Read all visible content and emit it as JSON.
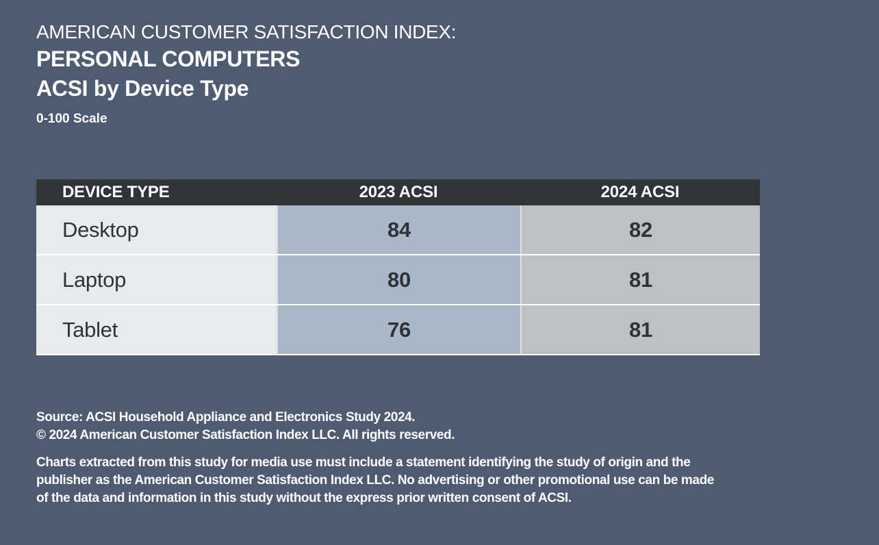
{
  "colors": {
    "bg": "#4e5b70",
    "header_bg": "#313335",
    "col_device_bg": "#e8eaec",
    "col_2023_bg": "#aab7c8",
    "col_2024_bg": "#bec1c3",
    "cell_text": "#303335",
    "title_text": "#ffffff"
  },
  "header": {
    "kicker": "AMERICAN CUSTOMER SATISFACTION INDEX:",
    "title": "PERSONAL COMPUTERS",
    "subtitle": "ACSI by Device Type",
    "scale_note": "0-100 Scale"
  },
  "chart_data": {
    "type": "table",
    "title": "American Customer Satisfaction Index: Personal Computers — ACSI by Device Type",
    "scale": "0-100 Scale",
    "columns": [
      "DEVICE TYPE",
      "2023 ACSI",
      "2024 ACSI"
    ],
    "rows": [
      {
        "device": "Desktop",
        "acsi_2023": 84,
        "acsi_2024": 82
      },
      {
        "device": "Laptop",
        "acsi_2023": 80,
        "acsi_2024": 81
      },
      {
        "device": "Tablet",
        "acsi_2023": 76,
        "acsi_2024": 81
      }
    ]
  },
  "footer": {
    "source_line1": "Source: ACSI Household Appliance and Electronics Study 2024.",
    "source_line2": "© 2024 American Customer Satisfaction Index LLC. All rights reserved.",
    "disclaimer_lines": [
      "Charts extracted from this study for media use must include a statement identifying the study of origin and the",
      "publisher as the American Customer Satisfaction Index LLC. No advertising or other promotional use can be made",
      "of the data and information in this study without the express prior written consent of ACSI."
    ]
  }
}
